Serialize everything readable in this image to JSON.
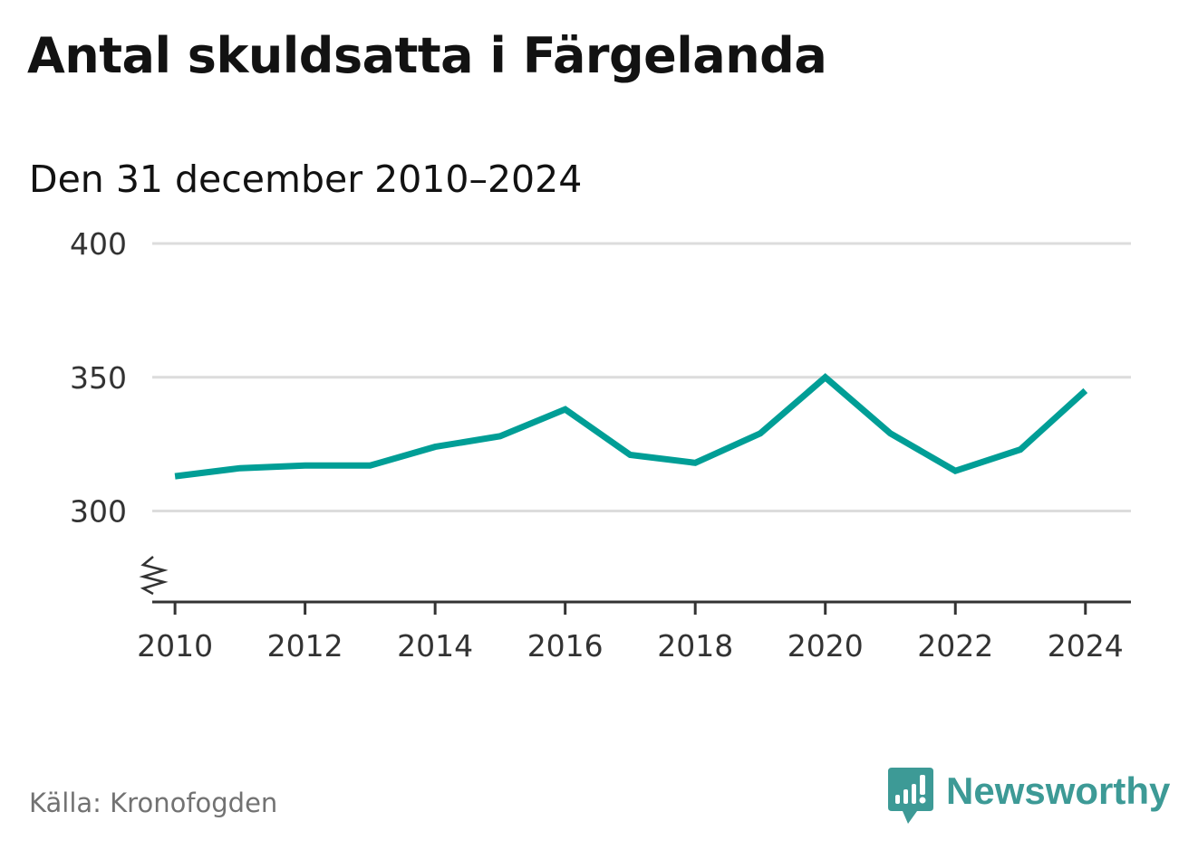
{
  "header": {
    "title": "Antal skuldsatta i Färgelanda",
    "subtitle": "Den 31 december 2010–2024"
  },
  "chart_data": {
    "type": "line",
    "title": "Antal skuldsatta i Färgelanda",
    "subtitle": "Den 31 december 2010–2024",
    "xlabel": "",
    "ylabel": "",
    "x": [
      2010,
      2011,
      2012,
      2013,
      2014,
      2015,
      2016,
      2017,
      2018,
      2019,
      2020,
      2021,
      2022,
      2023,
      2024
    ],
    "series": [
      {
        "values": [
          313,
          316,
          317,
          317,
          324,
          328,
          338,
          321,
          318,
          329,
          350,
          329,
          315,
          323,
          345
        ],
        "color": "#009e96"
      }
    ],
    "xticks": [
      "2010",
      "2012",
      "2014",
      "2016",
      "2018",
      "2020",
      "2022",
      "2024"
    ],
    "yticks": [
      "300",
      "350",
      "400"
    ],
    "ylim": [
      266,
      400
    ],
    "xlim": [
      2009.65,
      2024.7
    ],
    "grid": true,
    "axis_break": true,
    "legend": "none"
  },
  "footer": {
    "source": "Källa: Kronofogden",
    "brand": "Newsworthy",
    "brand_icon": "newsworthy-logo-icon",
    "brand_color": "#3d9a96"
  },
  "colors": {
    "line": "#009e96",
    "grid": "#dcdcdc",
    "axis": "#333333",
    "title": "#121212",
    "source": "#727272"
  }
}
